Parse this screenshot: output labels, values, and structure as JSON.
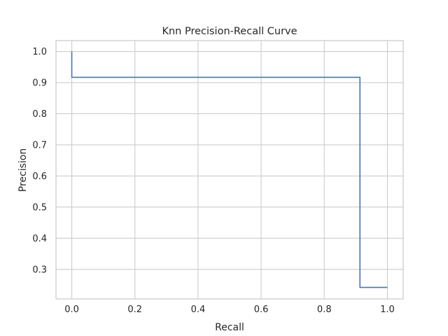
{
  "chart_data": {
    "type": "line",
    "title": "Knn Precision-Recall Curve",
    "xlabel": "Recall",
    "ylabel": "Precision",
    "xlim": [
      -0.05,
      1.05
    ],
    "ylim": [
      0.205,
      1.035
    ],
    "xticks": [
      0.0,
      0.2,
      0.4,
      0.6,
      0.8,
      1.0
    ],
    "xtick_labels": [
      "0.0",
      "0.2",
      "0.4",
      "0.6",
      "0.8",
      "1.0"
    ],
    "yticks": [
      0.3,
      0.4,
      0.5,
      0.6,
      0.7,
      0.8,
      0.9,
      1.0
    ],
    "ytick_labels": [
      "0.3",
      "0.4",
      "0.5",
      "0.6",
      "0.7",
      "0.8",
      "0.9",
      "1.0"
    ],
    "grid": true,
    "legend": "none",
    "step": "post",
    "series": [
      {
        "color": "#4c72b0",
        "x": [
          0.0,
          0.0,
          0.913,
          0.913,
          1.0
        ],
        "y": [
          1.0,
          0.917,
          0.917,
          0.242,
          0.242
        ]
      }
    ]
  }
}
